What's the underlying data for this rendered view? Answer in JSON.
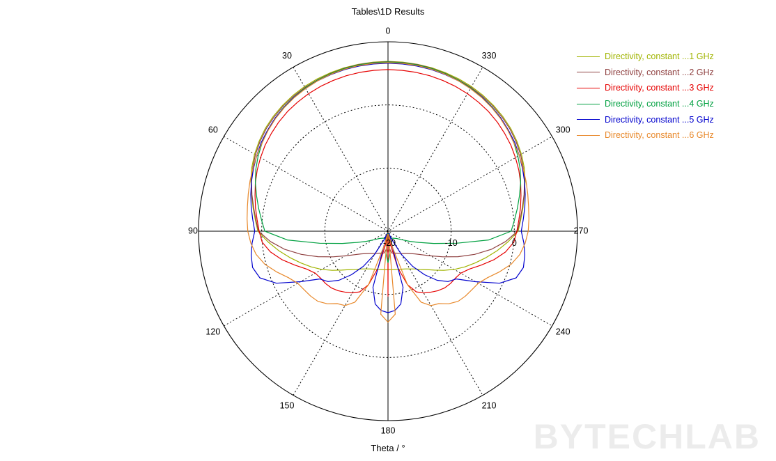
{
  "chart_data": {
    "type": "polar-line",
    "title": "Tables\\1D Results",
    "xlabel": "Theta / °",
    "watermark": "BYTECHLAB",
    "angle_step_deg": 30,
    "angle_labels": [
      "0",
      "30",
      "60",
      "90",
      "120",
      "150",
      "180",
      "210",
      "240",
      "270",
      "300",
      "330"
    ],
    "angle_direction": "counterclockwise-from-top",
    "radial_axis": {
      "min_db": -20,
      "max_db": 10,
      "step_db": 10,
      "tick_labels": [
        "-20",
        "-10",
        "0"
      ],
      "grid_dashed_rings_db": [
        -10,
        0
      ],
      "outer_solid_ring_db": 10
    },
    "theta_sample_step_deg": 5,
    "theta_sample_range_deg": [
      0,
      180
    ],
    "symmetric_about_vertical_axis": true,
    "series": [
      {
        "name": "Directivity, constant ...1 GHz",
        "color": "#a0b400",
        "values": [
          6.9,
          6.88,
          6.85,
          6.8,
          6.7,
          6.6,
          6.45,
          6.25,
          6.0,
          5.7,
          5.35,
          4.9,
          4.4,
          3.8,
          3.1,
          2.35,
          1.7,
          1.1,
          0.6,
          -0.9,
          -2.4,
          -3.9,
          -5.3,
          -6.6,
          -7.9,
          -9.2,
          -10.4,
          -11.4,
          -12.1,
          -12.7,
          -13.1,
          -13.4,
          -13.6,
          -13.75,
          -13.85,
          -13.9,
          -13.95
        ]
      },
      {
        "name": "Directivity, constant ...2 GHz",
        "color": "#8f4040",
        "values": [
          6.85,
          6.83,
          6.8,
          6.72,
          6.6,
          6.45,
          6.3,
          6.1,
          5.85,
          5.55,
          5.2,
          4.75,
          4.25,
          3.65,
          3.0,
          2.3,
          1.6,
          1.0,
          0.5,
          -1.3,
          -3.4,
          -5.8,
          -8.2,
          -10.4,
          -12.2,
          -13.5,
          -14.4,
          -15.0,
          -15.4,
          -15.7,
          -15.95,
          -16.15,
          -16.3,
          -16.4,
          -16.5,
          -17.2,
          -16.6
        ]
      },
      {
        "name": "Directivity, constant ...3 GHz",
        "color": "#e60000",
        "values": [
          5.6,
          5.58,
          5.55,
          5.5,
          5.4,
          5.3,
          5.15,
          4.95,
          4.75,
          4.45,
          4.1,
          3.75,
          3.3,
          2.85,
          2.35,
          1.8,
          1.3,
          0.8,
          0.4,
          0.0,
          -1.1,
          -2.6,
          -4.3,
          -5.8,
          -6.7,
          -7.0,
          -7.1,
          -7.3,
          -7.7,
          -8.2,
          -8.7,
          -9.4,
          -11.0,
          -14.0,
          -18.0,
          -19.8,
          -9.7
        ]
      },
      {
        "name": "Directivity, constant ...4 GHz",
        "color": "#00a040",
        "values": [
          6.8,
          6.78,
          6.74,
          6.67,
          6.55,
          6.4,
          6.2,
          5.95,
          5.65,
          5.3,
          4.85,
          4.35,
          3.75,
          3.1,
          2.35,
          1.55,
          0.8,
          0.1,
          -0.5,
          -4.0,
          -9.0,
          -12.5,
          -14.8,
          -16.2,
          -17.2,
          -17.8,
          -18.2,
          -18.4,
          -18.55,
          -18.65,
          -18.7,
          -18.75,
          -18.8,
          -19.3,
          -19.7,
          -16.5,
          -15.0
        ]
      },
      {
        "name": "Directivity, constant ...5 GHz",
        "color": "#0000cd",
        "values": [
          6.6,
          6.58,
          6.55,
          6.5,
          6.4,
          6.3,
          6.1,
          5.9,
          5.6,
          5.3,
          4.9,
          4.5,
          4.0,
          3.5,
          3.0,
          2.5,
          2.0,
          1.5,
          1.1,
          1.6,
          2.0,
          2.2,
          1.6,
          -0.5,
          -4.0,
          -6.8,
          -7.6,
          -9.0,
          -11.0,
          -13.2,
          -15.8,
          -18.5,
          -19.6,
          -10.8,
          -8.3,
          -7.4,
          -7.1
        ]
      },
      {
        "name": "Directivity, constant ...6 GHz",
        "color": "#e8882a",
        "values": [
          6.7,
          6.68,
          6.64,
          6.57,
          6.45,
          6.3,
          6.1,
          5.85,
          5.55,
          5.2,
          4.8,
          4.35,
          4.0,
          3.6,
          3.25,
          2.9,
          2.6,
          2.4,
          2.2,
          1.8,
          1.2,
          0.2,
          -1.2,
          -2.6,
          -3.5,
          -3.8,
          -4.0,
          -4.3,
          -5.0,
          -6.0,
          -6.4,
          -7.6,
          -11.0,
          -17.5,
          -19.5,
          -6.8,
          -5.6
        ]
      }
    ]
  }
}
